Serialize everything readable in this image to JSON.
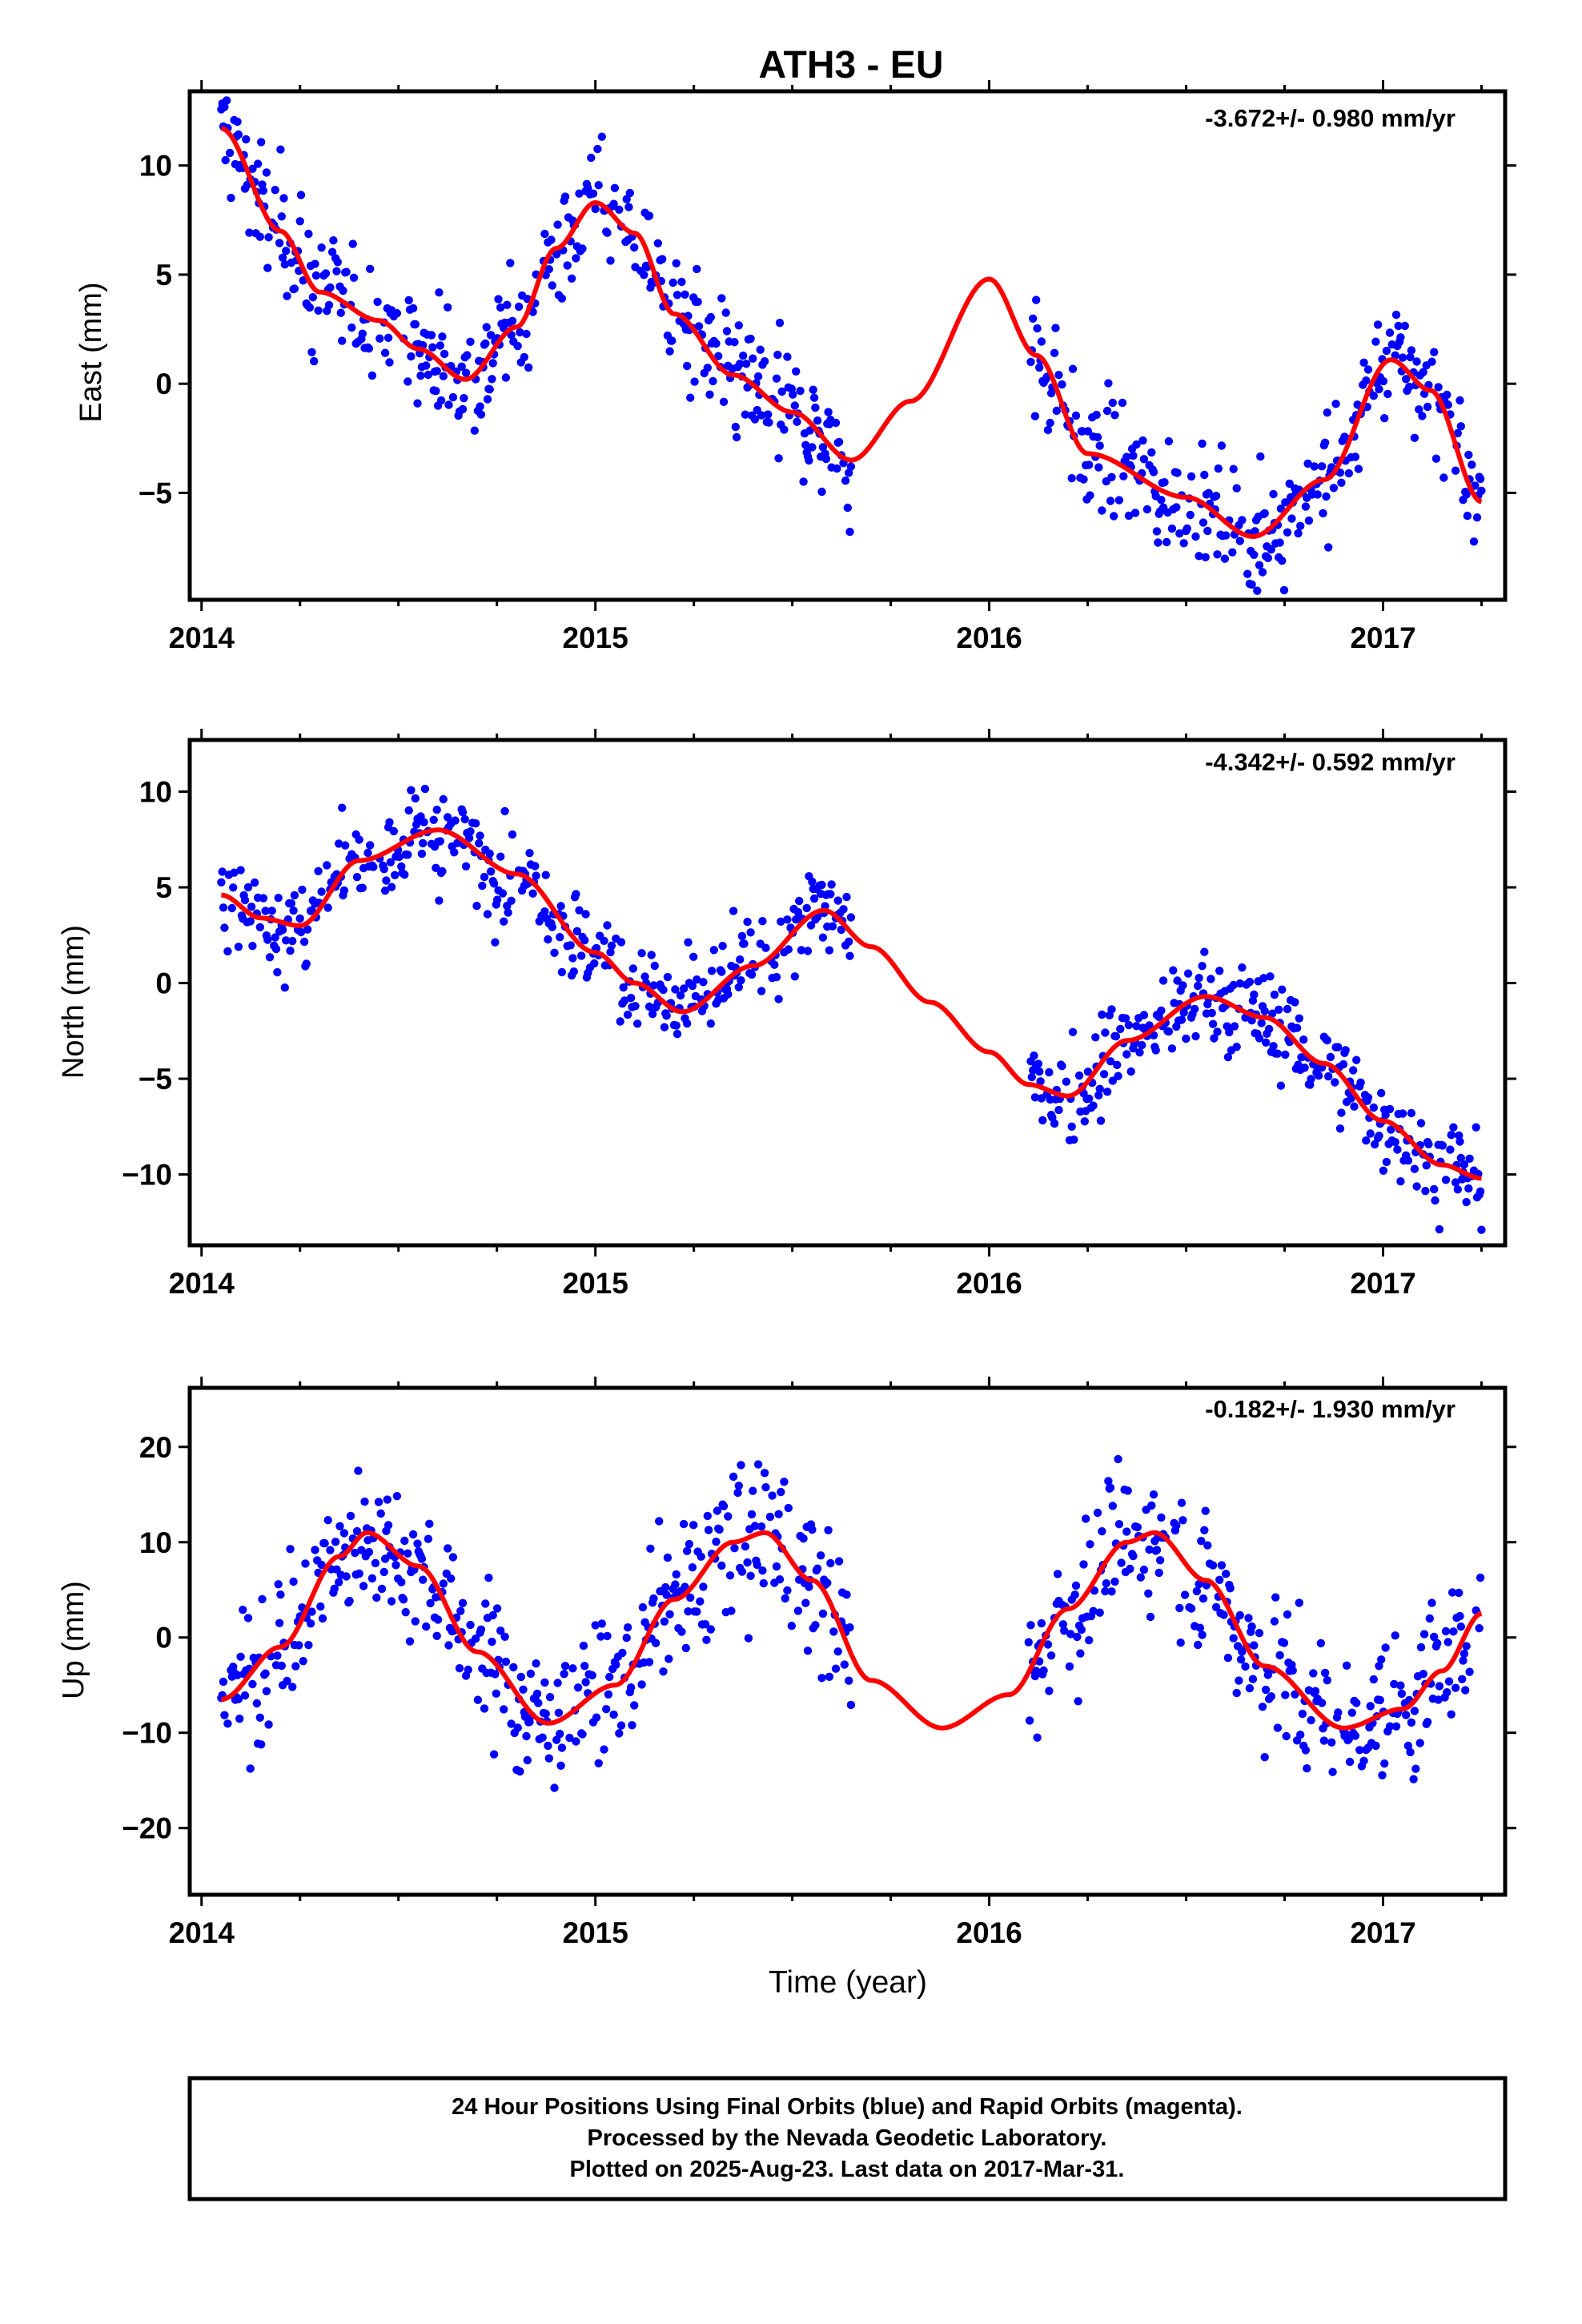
{
  "title": "ATH3 - EU",
  "xlabel": "Time (year)",
  "footer": {
    "line1": "24 Hour Positions Using Final Orbits (blue) and Rapid Orbits (magenta).",
    "line2": "Processed by the Nevada Geodetic Laboratory.",
    "line3": "Plotted on 2025-Aug-23. Last data on 2017-Mar-31."
  },
  "colors": {
    "points": "#0000ff",
    "model": "#ff0000",
    "axes": "#000000"
  },
  "chart_data": [
    {
      "type": "scatter",
      "ylabel": "East (mm)",
      "rate": "-3.672+/- 0.980 mm/yr",
      "xlim": [
        2013.97,
        2017.31
      ],
      "ylim": [
        -9.9,
        13.4
      ],
      "x_ticks": [
        2014,
        2015,
        2016,
        2017
      ],
      "y_ticks": [
        -5,
        0,
        5,
        10
      ],
      "grid": false,
      "series": [
        {
          "kind": "daily-positions",
          "segments": [
            [
              2014.05,
              2015.65
            ],
            [
              2016.1,
              2017.25
            ]
          ]
        },
        {
          "kind": "model-fit",
          "x": [
            2014.05,
            2014.2,
            2014.3,
            2014.45,
            2014.55,
            2014.67,
            2014.8,
            2014.9,
            2015.0,
            2015.1,
            2015.2,
            2015.35,
            2015.5,
            2015.65,
            2015.8,
            2016.0,
            2016.12,
            2016.25,
            2016.5,
            2016.67,
            2016.85,
            2017.02,
            2017.12,
            2017.25
          ],
          "y": [
            11.7,
            7.0,
            4.2,
            2.9,
            1.6,
            0.2,
            2.6,
            6.2,
            8.3,
            6.9,
            3.2,
            0.4,
            -1.3,
            -3.5,
            -0.8,
            4.8,
            1.3,
            -3.2,
            -5.2,
            -7.0,
            -4.4,
            1.1,
            -0.3,
            -5.4
          ]
        }
      ]
    },
    {
      "type": "scatter",
      "ylabel": "North (mm)",
      "rate": "-4.342+/- 0.592 mm/yr",
      "xlim": [
        2013.97,
        2017.31
      ],
      "ylim": [
        -13.7,
        12.7
      ],
      "x_ticks": [
        2014,
        2015,
        2016,
        2017
      ],
      "y_ticks": [
        -10,
        -5,
        0,
        5,
        10
      ],
      "grid": false,
      "series": [
        {
          "kind": "daily-positions",
          "segments": [
            [
              2014.05,
              2015.65
            ],
            [
              2016.1,
              2017.25
            ]
          ]
        },
        {
          "kind": "model-fit",
          "x": [
            2014.05,
            2014.15,
            2014.25,
            2014.4,
            2014.6,
            2014.8,
            2015.0,
            2015.1,
            2015.22,
            2015.4,
            2015.58,
            2015.7,
            2015.85,
            2016.0,
            2016.1,
            2016.2,
            2016.35,
            2016.55,
            2016.7,
            2016.85,
            2017.0,
            2017.15,
            2017.25
          ],
          "y": [
            4.6,
            3.4,
            3.0,
            6.4,
            8.0,
            5.7,
            1.6,
            0.0,
            -1.5,
            0.9,
            3.8,
            1.9,
            -1.0,
            -3.6,
            -5.3,
            -5.9,
            -3.0,
            -0.7,
            -1.8,
            -4.2,
            -7.2,
            -9.5,
            -10.2
          ]
        }
      ]
    },
    {
      "type": "scatter",
      "ylabel": "Up (mm)",
      "rate": "-0.182+/- 1.930 mm/yr",
      "xlim": [
        2013.97,
        2017.31
      ],
      "ylim": [
        -27,
        26.2
      ],
      "x_ticks": [
        2014,
        2015,
        2016,
        2017
      ],
      "y_ticks": [
        -20,
        -10,
        0,
        10,
        20
      ],
      "grid": false,
      "series": [
        {
          "kind": "daily-positions",
          "segments": [
            [
              2014.05,
              2015.65
            ],
            [
              2016.1,
              2017.25
            ]
          ]
        },
        {
          "kind": "model-fit",
          "x": [
            2014.05,
            2014.2,
            2014.35,
            2014.42,
            2014.55,
            2014.7,
            2014.88,
            2015.05,
            2015.2,
            2015.35,
            2015.43,
            2015.55,
            2015.7,
            2015.88,
            2016.05,
            2016.2,
            2016.35,
            2016.42,
            2016.55,
            2016.7,
            2016.9,
            2017.05,
            2017.15,
            2017.25
          ],
          "y": [
            -6.5,
            -1.0,
            8.5,
            11.0,
            7.5,
            -1.5,
            -9.0,
            -5.0,
            4.0,
            10.0,
            11.0,
            6.0,
            -4.5,
            -9.5,
            -6.0,
            3.0,
            10.0,
            11.0,
            6.0,
            -3.0,
            -9.5,
            -7.5,
            -3.5,
            2.5
          ]
        }
      ]
    }
  ]
}
